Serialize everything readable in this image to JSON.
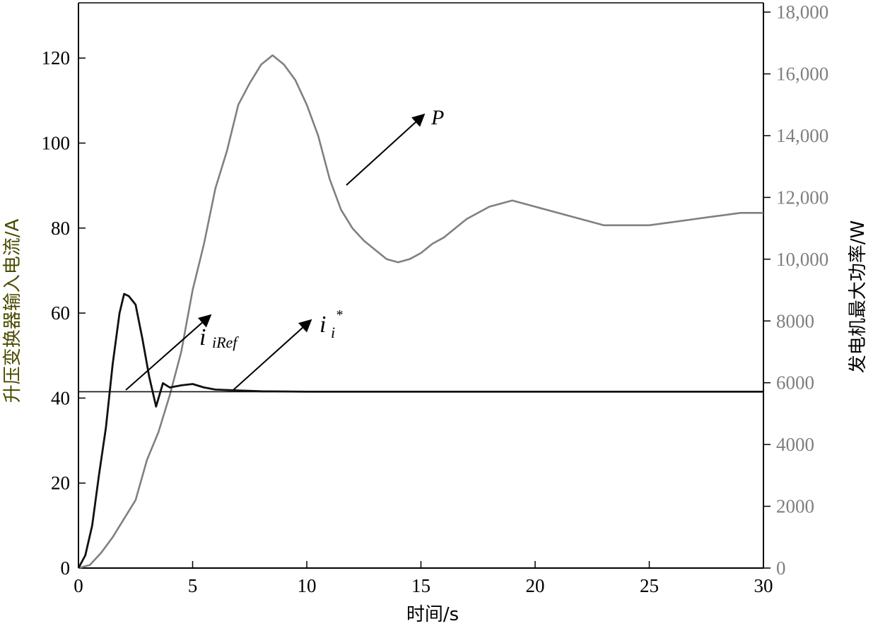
{
  "chart_data": {
    "type": "line",
    "xlabel": "时间/s",
    "ylabel_left": "升压变换器输入电流/A",
    "ylabel_right": "发电机最大功率/W",
    "xlim": [
      0,
      30
    ],
    "ylim_left": [
      0,
      133
    ],
    "ylim_right": [
      0,
      18300
    ],
    "x_ticks": [
      "0",
      "5",
      "10",
      "15",
      "20",
      "25",
      "30"
    ],
    "y_left_ticks": [
      "0",
      "20",
      "40",
      "60",
      "80",
      "100",
      "120"
    ],
    "y_right_ticks": [
      "0",
      "2000",
      "4000",
      "6000",
      "8000",
      "10,000",
      "12,000",
      "14,000",
      "16,000",
      "18,000"
    ],
    "grid": false,
    "colors": {
      "current": "#111111",
      "power": "#808080",
      "axis": "#000000",
      "right_axis_text": "#7f7f7f",
      "left_title": "#4a4a00"
    },
    "series": [
      {
        "name": "i_iRef",
        "axis": "left",
        "x": [
          0,
          0.3,
          0.6,
          0.9,
          1.2,
          1.5,
          1.8,
          2.0,
          2.2,
          2.5,
          2.8,
          3.1,
          3.4,
          3.7,
          4.0,
          4.5,
          5.0,
          5.5,
          6.0,
          7.0,
          8.0,
          10.0,
          15.0,
          20.0,
          25.0,
          30.0
        ],
        "y": [
          0,
          3,
          10,
          22,
          33,
          48,
          60,
          64.5,
          64,
          62,
          54,
          45,
          38,
          43.5,
          42.5,
          43,
          43.3,
          42.5,
          42,
          41.8,
          41.6,
          41.5,
          41.5,
          41.5,
          41.5,
          41.5
        ]
      },
      {
        "name": "i_i*",
        "axis": "left",
        "x": [
          0,
          30
        ],
        "y": [
          41.5,
          41.5
        ]
      },
      {
        "name": "P",
        "axis": "right",
        "x": [
          0,
          0.5,
          1.0,
          1.5,
          2.0,
          2.5,
          3.0,
          3.5,
          4.0,
          4.5,
          5.0,
          5.5,
          6.0,
          6.5,
          7.0,
          7.5,
          8.0,
          8.5,
          9.0,
          9.5,
          10.0,
          10.5,
          11.0,
          11.5,
          12.0,
          12.5,
          13.0,
          13.5,
          14.0,
          14.5,
          15.0,
          15.5,
          16.0,
          17.0,
          18.0,
          19.0,
          20.0,
          21.0,
          22.0,
          23.0,
          24.0,
          25.0,
          26.0,
          27.0,
          28.0,
          29.0,
          30.0
        ],
        "y": [
          0,
          100,
          500,
          1000,
          1600,
          2200,
          3500,
          4400,
          5600,
          7000,
          9000,
          10500,
          12300,
          13500,
          15000,
          15700,
          16300,
          16600,
          16300,
          15800,
          15000,
          14000,
          12600,
          11600,
          11000,
          10600,
          10300,
          10000,
          9900,
          10000,
          10200,
          10500,
          10700,
          11300,
          11700,
          11900,
          11700,
          11500,
          11300,
          11100,
          11100,
          11100,
          11200,
          11300,
          11400,
          11500,
          11500
        ]
      }
    ],
    "annotations": {
      "i_iRef": {
        "base": "i",
        "sub": "iRef"
      },
      "i_star": {
        "base": "i",
        "sub": "i",
        "sup": "*"
      },
      "P": {
        "text": "P"
      }
    }
  }
}
